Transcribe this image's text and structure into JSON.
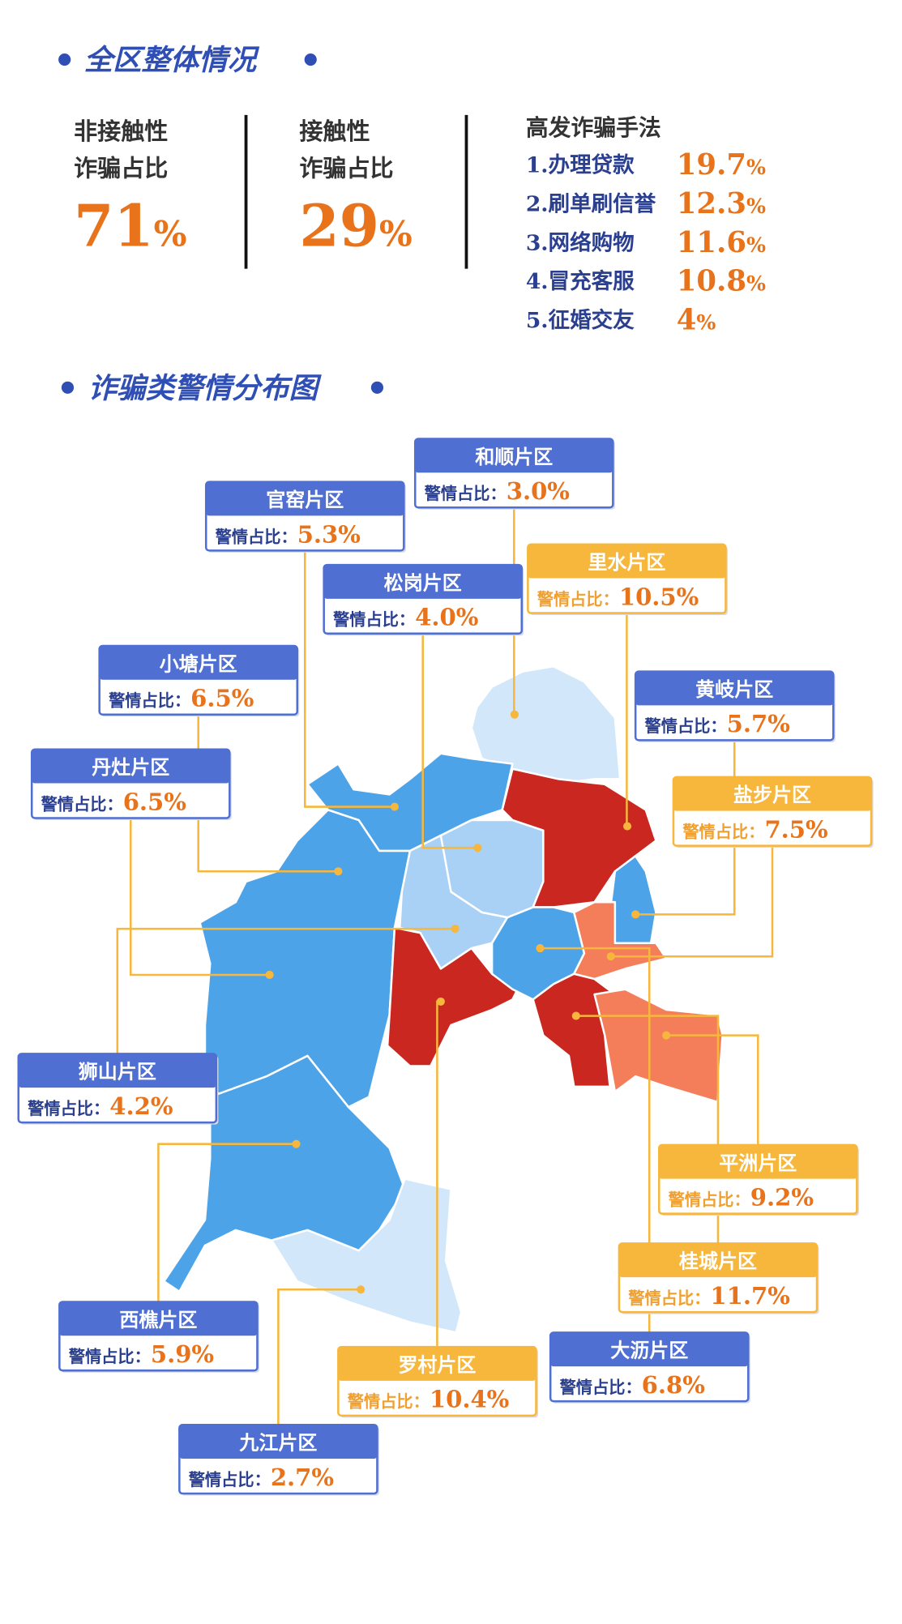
{
  "overview": {
    "title": "全区整体情况",
    "stats": [
      {
        "label_lines": [
          "非接触性",
          "诈骗占比"
        ],
        "number": "71",
        "unit": "%"
      },
      {
        "label_lines": [
          "接触性",
          "诈骗占比"
        ],
        "number": "29",
        "unit": "%"
      }
    ],
    "methods": {
      "title": "高发诈骗手法",
      "items": [
        {
          "name": "1.办理贷款",
          "number": "19.7",
          "unit": "%"
        },
        {
          "name": "2.刷单刷信誉",
          "number": "12.3",
          "unit": "%"
        },
        {
          "name": "3.网络购物",
          "number": "11.6",
          "unit": "%"
        },
        {
          "name": "4.冒充客服",
          "number": "10.8",
          "unit": "%"
        },
        {
          "name": "5.征婚交友",
          "number": "4",
          "unit": "%"
        }
      ]
    }
  },
  "map": {
    "title": "诈骗类警情分布图",
    "share_label": "警情占比：",
    "regions": [
      {
        "name": "和顺片区",
        "share": "3.0%",
        "color": "#4f6fd2"
      },
      {
        "name": "官窑片区",
        "share": "5.3%",
        "color": "#4f6fd2"
      },
      {
        "name": "松岗片区",
        "share": "4.0%",
        "color": "#4f6fd2"
      },
      {
        "name": "里水片区",
        "share": "10.5%",
        "color": "#f6b73c"
      },
      {
        "name": "小塘片区",
        "share": "6.5%",
        "color": "#4f6fd2"
      },
      {
        "name": "黄岐片区",
        "share": "5.7%",
        "color": "#4f6fd2"
      },
      {
        "name": "丹灶片区",
        "share": "6.5%",
        "color": "#4f6fd2"
      },
      {
        "name": "盐步片区",
        "share": "7.5%",
        "color": "#f6b73c"
      },
      {
        "name": "狮山片区",
        "share": "4.2%",
        "color": "#4f6fd2"
      },
      {
        "name": "平洲片区",
        "share": "9.2%",
        "color": "#f6b73c"
      },
      {
        "name": "西樵片区",
        "share": "5.9%",
        "color": "#4f6fd2"
      },
      {
        "name": "桂城片区",
        "share": "11.7%",
        "color": "#f6b73c"
      },
      {
        "name": "大沥片区",
        "share": "6.8%",
        "color": "#4f6fd2"
      },
      {
        "name": "罗村片区",
        "share": "10.4%",
        "color": "#f6b73c"
      },
      {
        "name": "九江片区",
        "share": "2.7%",
        "color": "#4f6fd2"
      }
    ]
  }
}
